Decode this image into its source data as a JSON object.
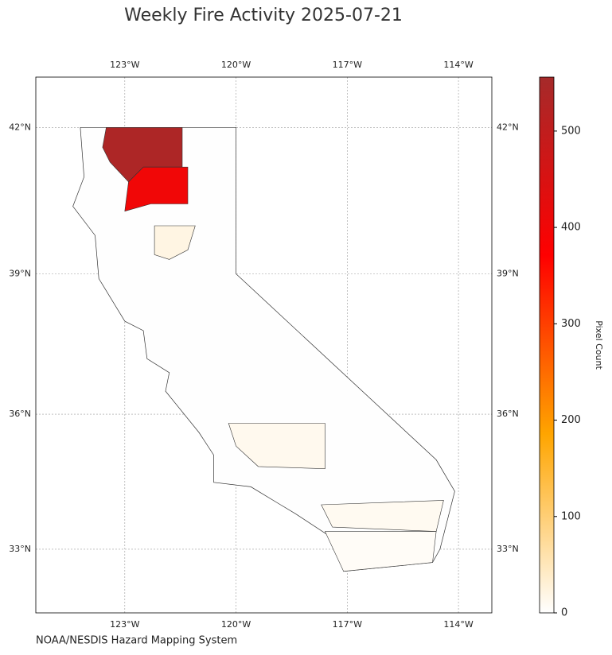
{
  "chart_data": {
    "type": "choropleth",
    "title": "Weekly Fire Activity 2025-07-21",
    "footer": "NOAA/NESDIS Hazard Mapping System",
    "colorbar_label": "Pixel Count",
    "xlim": [
      -125.4,
      -113.1
    ],
    "ylim": [
      31.55,
      43.0
    ],
    "xticks": [
      {
        "value": -123,
        "label": "123°W"
      },
      {
        "value": -120,
        "label": "120°W"
      },
      {
        "value": -117,
        "label": "117°W"
      },
      {
        "value": -114,
        "label": "114°W"
      }
    ],
    "yticks": [
      {
        "value": 42,
        "label": "42°N"
      },
      {
        "value": 39,
        "label": "39°N"
      },
      {
        "value": 36,
        "label": "36°N"
      },
      {
        "value": 33,
        "label": "33°N"
      }
    ],
    "clim": [
      0,
      556
    ],
    "cticks": [
      0,
      100,
      200,
      300,
      400,
      500
    ],
    "colormap": [
      "#ffffff",
      "#ffa500",
      "#ff0000",
      "#a52a2a"
    ],
    "grid": true,
    "values": [
      540,
      400,
      20,
      12,
      10,
      6
    ]
  }
}
